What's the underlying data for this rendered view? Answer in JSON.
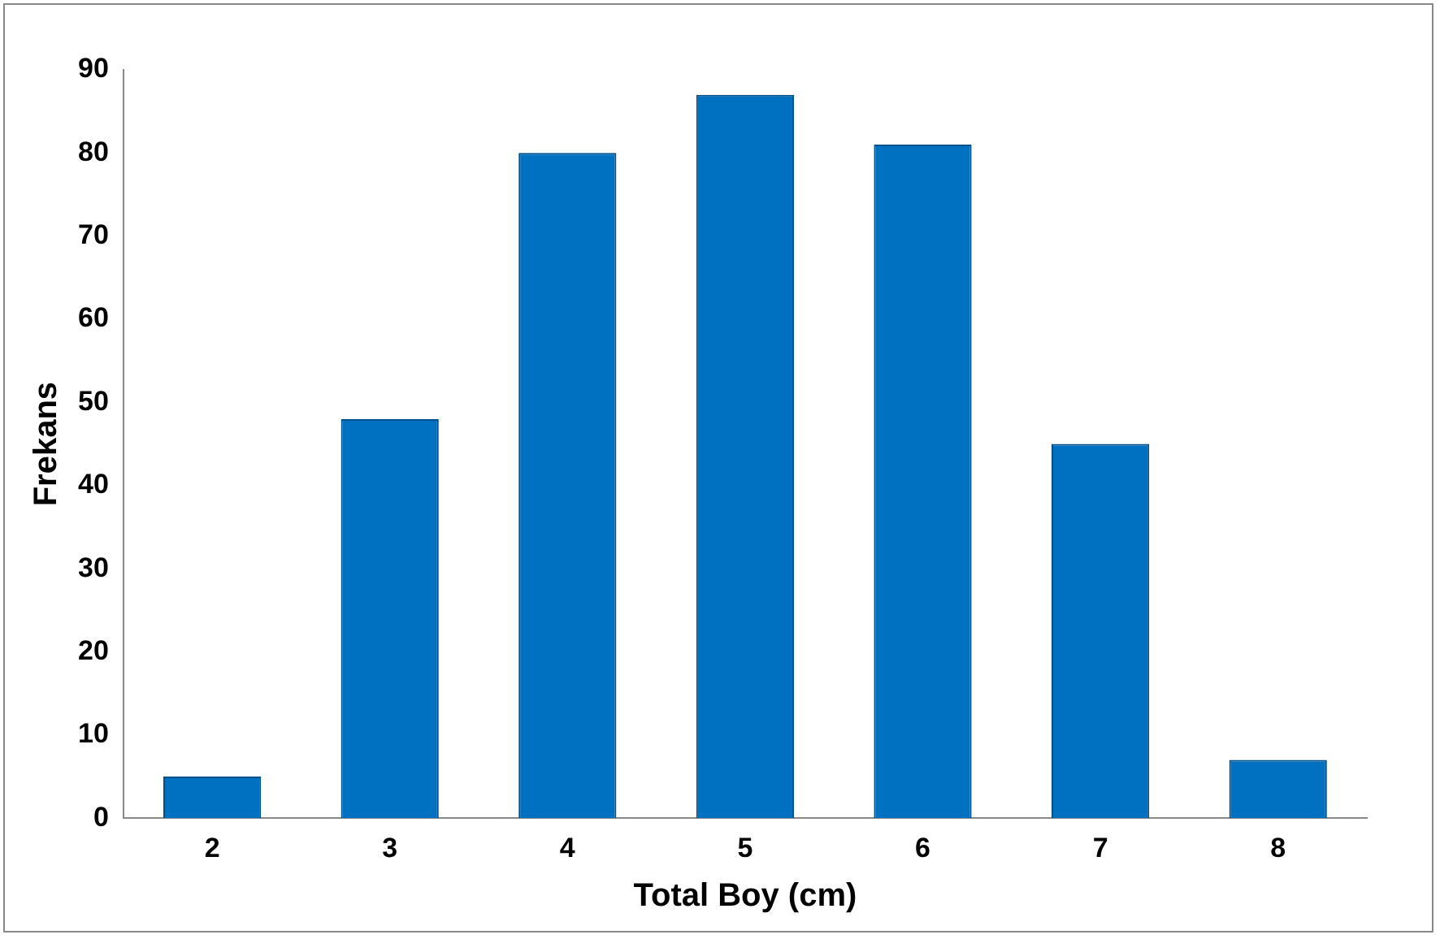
{
  "chart_data": {
    "type": "bar",
    "xlabel": "Total Boy (cm)",
    "ylabel": "Frekans",
    "categories": [
      "2",
      "3",
      "4",
      "5",
      "6",
      "7",
      "8"
    ],
    "values": [
      5,
      48,
      80,
      87,
      81,
      45,
      7
    ],
    "color": "#0070c0",
    "ylim": [
      0,
      90
    ],
    "yticks": [
      0,
      10,
      20,
      30,
      40,
      50,
      60,
      70,
      80,
      90
    ],
    "grid": false,
    "legend": false
  }
}
